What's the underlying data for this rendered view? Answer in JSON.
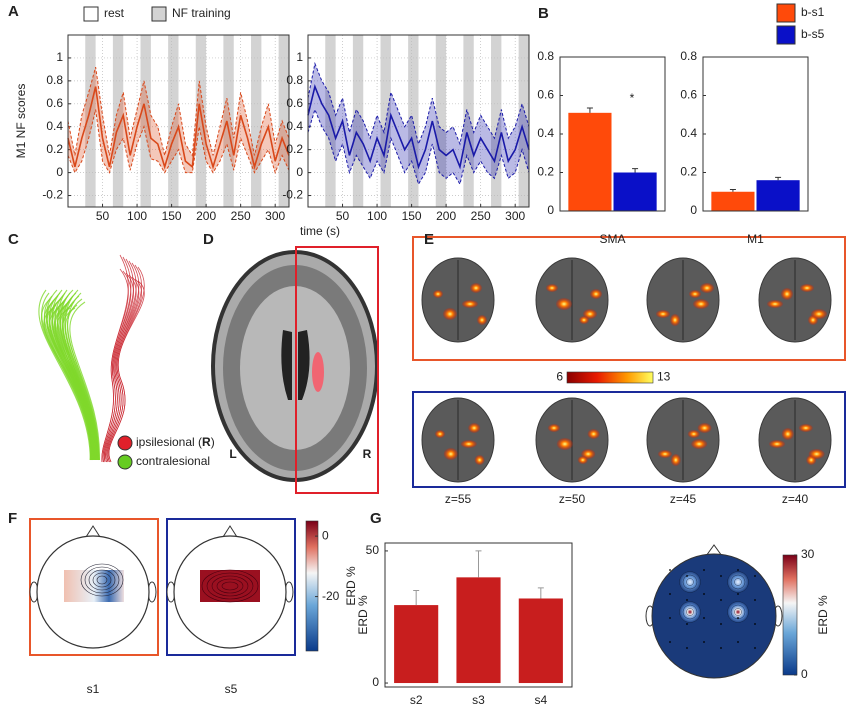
{
  "panel_labels": [
    "A",
    "B",
    "C",
    "D",
    "E",
    "F",
    "G"
  ],
  "chart_data": [
    {
      "type": "line",
      "ylabel": "M1 NF scores",
      "xlabel": "time (s)",
      "shading_legend": [
        "rest",
        "NF training"
      ],
      "nf_blocks": [
        [
          25,
          40
        ],
        [
          65,
          80
        ],
        [
          105,
          120
        ],
        [
          145,
          160
        ],
        [
          185,
          200
        ],
        [
          225,
          240
        ],
        [
          265,
          280
        ],
        [
          305,
          320
        ]
      ],
      "x": [
        0,
        10,
        20,
        30,
        40,
        50,
        60,
        70,
        80,
        90,
        100,
        110,
        120,
        130,
        140,
        150,
        160,
        170,
        180,
        190,
        200,
        210,
        220,
        230,
        240,
        250,
        260,
        270,
        280,
        290,
        300,
        310,
        320
      ],
      "xlim": [
        0,
        320
      ],
      "xticks": [
        50,
        100,
        150,
        200,
        250,
        300
      ],
      "ylim": [
        -0.3,
        1.2
      ],
      "yticks": [
        -0.2,
        0,
        0.2,
        0.4,
        0.6,
        0.8,
        1
      ],
      "grid": true,
      "series": [
        {
          "color": "#d9481a",
          "dash": false,
          "values": [
            0.3,
            0.05,
            0.3,
            0.5,
            0.75,
            0.3,
            0.05,
            0.35,
            0.5,
            0.15,
            0.4,
            0.6,
            0.3,
            0.25,
            0.05,
            0.25,
            0.4,
            0.1,
            0.05,
            0.6,
            0.25,
            0.05,
            0.25,
            0.45,
            0.15,
            0.5,
            0.3,
            0.05,
            0.25,
            0.4,
            0.1,
            0.3,
            0.15
          ]
        },
        {
          "color": "#d9481a",
          "dash": true,
          "values": [
            0.45,
            0.15,
            0.5,
            0.7,
            0.92,
            0.5,
            0.15,
            0.5,
            0.7,
            0.3,
            0.55,
            0.8,
            0.5,
            0.4,
            0.15,
            0.4,
            0.6,
            0.25,
            0.15,
            0.8,
            0.4,
            0.15,
            0.4,
            0.65,
            0.3,
            0.7,
            0.45,
            0.15,
            0.4,
            0.6,
            0.25,
            0.45,
            0.3
          ]
        },
        {
          "color": "#d9481a",
          "dash": true,
          "values": [
            0.15,
            0,
            0.1,
            0.3,
            0.55,
            0.1,
            0,
            0.2,
            0.3,
            0.02,
            0.25,
            0.4,
            0.12,
            0.1,
            0,
            0.1,
            0.2,
            0,
            0,
            0.4,
            0.1,
            0,
            0.1,
            0.25,
            0.02,
            0.3,
            0.15,
            0,
            0.1,
            0.2,
            0,
            0.15,
            0.02
          ]
        }
      ]
    },
    {
      "type": "line",
      "nf_blocks": [
        [
          25,
          40
        ],
        [
          65,
          80
        ],
        [
          105,
          120
        ],
        [
          145,
          160
        ],
        [
          185,
          200
        ],
        [
          225,
          240
        ],
        [
          265,
          280
        ],
        [
          305,
          320
        ]
      ],
      "x": [
        0,
        10,
        20,
        30,
        40,
        50,
        60,
        70,
        80,
        90,
        100,
        110,
        120,
        130,
        140,
        150,
        160,
        170,
        180,
        190,
        200,
        210,
        220,
        230,
        240,
        250,
        260,
        270,
        280,
        290,
        300,
        310,
        320
      ],
      "xlim": [
        0,
        320
      ],
      "xticks": [
        50,
        100,
        150,
        200,
        250,
        300
      ],
      "ylim": [
        -0.3,
        1.2
      ],
      "yticks": [
        -0.2,
        0,
        0.2,
        0.4,
        0.6,
        0.8,
        1
      ],
      "grid": true,
      "series": [
        {
          "color": "#1a1aa8",
          "dash": false,
          "values": [
            0.5,
            0.75,
            0.6,
            0.5,
            0.3,
            0.45,
            0.15,
            0.35,
            0.25,
            0.1,
            0.3,
            0.15,
            0.5,
            0.35,
            0.2,
            0.3,
            0.05,
            0.2,
            0.45,
            0.2,
            0.15,
            0.2,
            0.05,
            0.35,
            0.15,
            0.3,
            0.2,
            0.1,
            0.35,
            0.1,
            0.2,
            0.4,
            0.2
          ]
        },
        {
          "color": "#1a1aa8",
          "dash": true,
          "values": [
            0.65,
            0.95,
            0.8,
            0.7,
            0.5,
            0.65,
            0.35,
            0.55,
            0.45,
            0.3,
            0.5,
            0.35,
            0.7,
            0.55,
            0.4,
            0.5,
            0.25,
            0.4,
            0.65,
            0.4,
            0.35,
            0.4,
            0.25,
            0.55,
            0.35,
            0.5,
            0.4,
            0.3,
            0.55,
            0.3,
            0.4,
            0.6,
            0.4
          ]
        },
        {
          "color": "#1a1aa8",
          "dash": true,
          "values": [
            0.35,
            0.55,
            0.4,
            0.3,
            0.1,
            0.25,
            0,
            0.15,
            0.05,
            -0.05,
            0.1,
            0,
            0.3,
            0.15,
            0,
            0.1,
            -0.1,
            0,
            0.25,
            0,
            -0.05,
            0,
            -0.1,
            0.15,
            0,
            0.1,
            0,
            -0.05,
            0.15,
            -0.05,
            0,
            0.2,
            0
          ]
        }
      ]
    },
    {
      "type": "bar",
      "categories": [
        "SMA"
      ],
      "ylim": [
        0,
        0.8
      ],
      "yticks": [
        0,
        0.2,
        0.4,
        0.6,
        0.8
      ],
      "annotation": "*",
      "series": [
        {
          "name": "b-s1",
          "color": "#ff4a0a",
          "values": [
            0.51
          ],
          "errors": [
            0.025
          ]
        },
        {
          "name": "b-s5",
          "color": "#0a10c8",
          "values": [
            0.2
          ],
          "errors": [
            0.02
          ]
        }
      ]
    },
    {
      "type": "bar",
      "categories": [
        "M1"
      ],
      "ylim": [
        0,
        0.8
      ],
      "yticks": [
        0,
        0.2,
        0.4,
        0.6,
        0.8
      ],
      "series": [
        {
          "color": "#ff4a0a",
          "values": [
            0.1
          ],
          "errors": [
            0.012
          ]
        },
        {
          "color": "#0a10c8",
          "values": [
            0.16
          ],
          "errors": [
            0.015
          ]
        }
      ]
    },
    {
      "type": "bar",
      "categories": [
        "s2",
        "s3",
        "s4"
      ],
      "ylabel": "ERD %",
      "ylim": [
        -1.5,
        53
      ],
      "yticks": [
        0,
        50
      ],
      "series": [
        {
          "color": "#c81e1e",
          "values": [
            29.5,
            40,
            32
          ],
          "errors": [
            5.5,
            10,
            4
          ]
        }
      ]
    }
  ],
  "panel_c": {
    "legend": [
      {
        "parts": [
          "ipsilesional (",
          "R",
          ")"
        ],
        "color": "#e0202a"
      },
      {
        "parts": [
          "contralesional"
        ],
        "color": "#66cc22"
      }
    ]
  },
  "panel_d": {
    "labels": [
      "L",
      "R"
    ]
  },
  "panel_e": {
    "slices": [
      "z=55",
      "z=50",
      "z=45",
      "z=40"
    ],
    "colorbar": {
      "lim": [
        6,
        13
      ],
      "ticks": [
        6,
        13
      ]
    }
  },
  "panel_f": {
    "topos": [
      "s1",
      "s5"
    ],
    "colorbar": {
      "lim": [
        -38,
        5
      ],
      "ticks": [
        0,
        -20
      ],
      "label": "ERD %"
    }
  },
  "panel_g": {
    "colorbar": {
      "lim": [
        0,
        30
      ],
      "ticks": [
        0,
        30
      ],
      "label": "ERD %"
    }
  }
}
